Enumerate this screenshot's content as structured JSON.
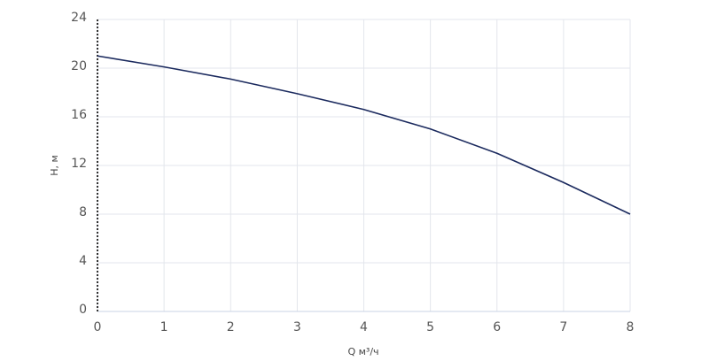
{
  "chart_data": {
    "type": "line",
    "x": [
      0,
      1,
      2,
      3,
      4,
      5,
      6,
      7,
      8
    ],
    "series": [
      {
        "color": "#1b2a5e",
        "values": [
          21,
          20.1,
          19.1,
          17.9,
          16.6,
          15.0,
          13.0,
          10.6,
          8.0
        ]
      }
    ],
    "xlim": [
      0,
      8
    ],
    "xticks": [
      0,
      1,
      2,
      3,
      4,
      5,
      6,
      7,
      8
    ],
    "ylim": [
      0,
      24
    ],
    "yticks": [
      0,
      4,
      8,
      12,
      16,
      20,
      24
    ],
    "xlabel": "Q м³/ч",
    "ylabel": "H, м",
    "grid": true
  }
}
